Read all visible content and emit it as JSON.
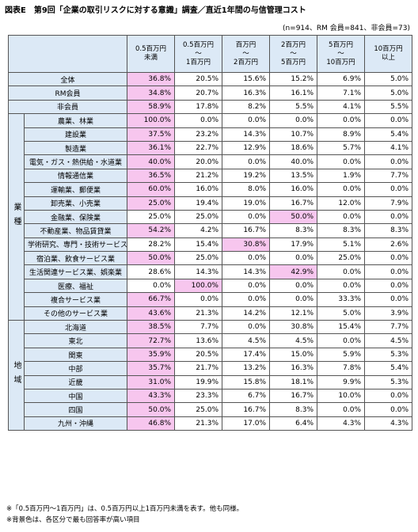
{
  "title": "図表E　第9回「企業の取引リスクに対する意識」調査／直近1年間の与信管理コスト",
  "note": "(n=914、RM 会員=841、非会員=73)",
  "table": {
    "headers": [
      "0.5百万円\n未満",
      "0.5百万円\n〜\n1百万円",
      "百万円\n〜\n2百万円",
      "2百万円\n〜\n5百万円",
      "5百万円\n〜\n10百万円",
      "10百万円\n以上"
    ],
    "rows": [
      {
        "label": "全体",
        "values": [
          "36.8%",
          "20.5%",
          "15.6%",
          "15.2%",
          "6.9%",
          "5.0%"
        ],
        "highlight": 0
      },
      {
        "label": "RM会員",
        "values": [
          "34.8%",
          "20.7%",
          "16.3%",
          "16.1%",
          "7.1%",
          "5.0%"
        ],
        "highlight": 0
      },
      {
        "label": "非会員",
        "values": [
          "58.9%",
          "17.8%",
          "8.2%",
          "5.5%",
          "4.1%",
          "5.5%"
        ],
        "highlight": 0
      }
    ],
    "groups": [
      {
        "label": "業種",
        "rows": [
          {
            "label": "農業、林業",
            "values": [
              "100.0%",
              "0.0%",
              "0.0%",
              "0.0%",
              "0.0%",
              "0.0%"
            ],
            "highlight": 0
          },
          {
            "label": "建設業",
            "values": [
              "37.5%",
              "23.2%",
              "14.3%",
              "10.7%",
              "8.9%",
              "5.4%"
            ],
            "highlight": 0
          },
          {
            "label": "製造業",
            "values": [
              "36.1%",
              "22.7%",
              "12.9%",
              "18.6%",
              "5.7%",
              "4.1%"
            ],
            "highlight": 0
          },
          {
            "label": "電気・ガス・熱供給・水道業",
            "values": [
              "40.0%",
              "20.0%",
              "0.0%",
              "40.0%",
              "0.0%",
              "0.0%"
            ],
            "highlight": 0
          },
          {
            "label": "情報通信業",
            "values": [
              "36.5%",
              "21.2%",
              "19.2%",
              "13.5%",
              "1.9%",
              "7.7%"
            ],
            "highlight": 0
          },
          {
            "label": "運輸業、郵便業",
            "values": [
              "60.0%",
              "16.0%",
              "8.0%",
              "16.0%",
              "0.0%",
              "0.0%"
            ],
            "highlight": 0
          },
          {
            "label": "卸売業、小売業",
            "values": [
              "25.0%",
              "19.4%",
              "19.0%",
              "16.7%",
              "12.0%",
              "7.9%"
            ],
            "highlight": 0
          },
          {
            "label": "金融業、保険業",
            "values": [
              "25.0%",
              "25.0%",
              "0.0%",
              "50.0%",
              "0.0%",
              "0.0%"
            ],
            "highlight": 3
          },
          {
            "label": "不動産業、物品賃貸業",
            "values": [
              "54.2%",
              "4.2%",
              "16.7%",
              "8.3%",
              "8.3%",
              "8.3%"
            ],
            "highlight": 0
          },
          {
            "label": "学術研究、専門・技術サービス業",
            "values": [
              "28.2%",
              "15.4%",
              "30.8%",
              "17.9%",
              "5.1%",
              "2.6%"
            ],
            "highlight": 2
          },
          {
            "label": "宿泊業、飲食サービス業",
            "values": [
              "50.0%",
              "25.0%",
              "0.0%",
              "0.0%",
              "25.0%",
              "0.0%"
            ],
            "highlight": 0
          },
          {
            "label": "生活関連サービス業、娯楽業",
            "values": [
              "28.6%",
              "14.3%",
              "14.3%",
              "42.9%",
              "0.0%",
              "0.0%"
            ],
            "highlight": 3
          },
          {
            "label": "医療、福祉",
            "values": [
              "0.0%",
              "100.0%",
              "0.0%",
              "0.0%",
              "0.0%",
              "0.0%"
            ],
            "highlight": 1
          },
          {
            "label": "複合サービス業",
            "values": [
              "66.7%",
              "0.0%",
              "0.0%",
              "0.0%",
              "33.3%",
              "0.0%"
            ],
            "highlight": 0
          },
          {
            "label": "その他のサービス業",
            "values": [
              "43.6%",
              "21.3%",
              "14.2%",
              "12.1%",
              "5.0%",
              "3.9%"
            ],
            "highlight": 0
          }
        ]
      },
      {
        "label": "地域",
        "rows": [
          {
            "label": "北海道",
            "values": [
              "38.5%",
              "7.7%",
              "0.0%",
              "30.8%",
              "15.4%",
              "7.7%"
            ],
            "highlight": 0
          },
          {
            "label": "東北",
            "values": [
              "72.7%",
              "13.6%",
              "4.5%",
              "4.5%",
              "0.0%",
              "4.5%"
            ],
            "highlight": 0
          },
          {
            "label": "関東",
            "values": [
              "35.9%",
              "20.5%",
              "17.4%",
              "15.0%",
              "5.9%",
              "5.3%"
            ],
            "highlight": 0
          },
          {
            "label": "中部",
            "values": [
              "35.7%",
              "21.7%",
              "13.2%",
              "16.3%",
              "7.8%",
              "5.4%"
            ],
            "highlight": 0
          },
          {
            "label": "近畿",
            "values": [
              "31.0%",
              "19.9%",
              "15.8%",
              "18.1%",
              "9.9%",
              "5.3%"
            ],
            "highlight": 0
          },
          {
            "label": "中国",
            "values": [
              "43.3%",
              "23.3%",
              "6.7%",
              "16.7%",
              "10.0%",
              "0.0%"
            ],
            "highlight": 0
          },
          {
            "label": "四国",
            "values": [
              "50.0%",
              "25.0%",
              "16.7%",
              "8.3%",
              "0.0%",
              "0.0%"
            ],
            "highlight": 0
          },
          {
            "label": "九州・沖縄",
            "values": [
              "46.8%",
              "21.3%",
              "17.0%",
              "6.4%",
              "4.3%",
              "4.3%"
            ],
            "highlight": 0
          }
        ]
      }
    ]
  },
  "footnotes": [
    "※「0.5百万円～1百万円」は、0.5百万円以上1百万円未満を表す。他も同様。",
    "※背景色は、各区分で最も回答率が高い項目"
  ]
}
